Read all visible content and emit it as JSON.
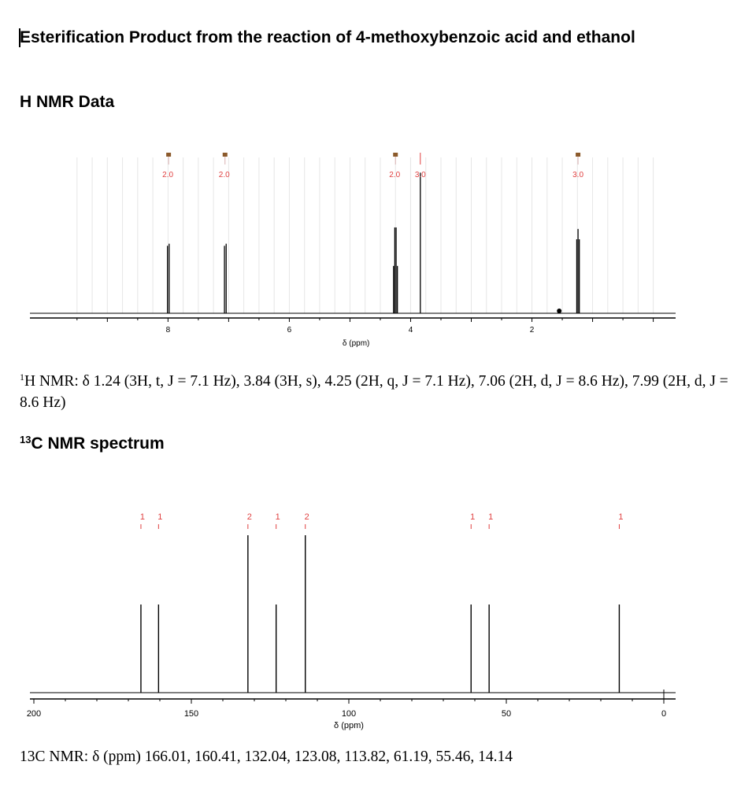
{
  "document": {
    "title": "Esterification Product from the reaction of 4-methoxybenzoic acid and ethanol",
    "h_heading": "H NMR Data",
    "h_caption_sup": "1",
    "h_caption": "H NMR: δ 1.24 (3H, t, J = 7.1 Hz), 3.84 (3H, s), 4.25 (2H, q, J = 7.1 Hz), 7.06 (2H, d, J = 8.6 Hz), 7.99 (2H, d, J = 8.6 Hz)",
    "c_heading_sup": "13",
    "c_heading": "C NMR spectrum",
    "c_caption": "13C NMR: δ (ppm) 166.01, 160.41, 132.04, 123.08, 113.82, 61.19, 55.46, 14.14"
  },
  "chart_data": [
    {
      "type": "line",
      "subtype": "nmr-stick-spectrum",
      "nucleus": "1H",
      "xlabel": "δ (ppm)",
      "x_range": [
        9.9,
        -0.2
      ],
      "x_ticks": [
        8,
        6,
        4,
        2
      ],
      "y_range": [
        0,
        1
      ],
      "peaks": [
        {
          "ppm": 7.99,
          "multiplicity": "d",
          "lines": [
            8.009,
            7.981
          ],
          "height": 0.47
        },
        {
          "ppm": 7.06,
          "multiplicity": "d",
          "lines": [
            7.069,
            7.041
          ],
          "height": 0.47
        },
        {
          "ppm": 4.25,
          "multiplicity": "q",
          "lines": [
            4.282,
            4.261,
            4.239,
            4.218
          ],
          "height": 0.5
        },
        {
          "ppm": 3.84,
          "multiplicity": "s",
          "lines": [
            3.84
          ],
          "height": 0.95
        },
        {
          "ppm": 1.24,
          "multiplicity": "t",
          "lines": [
            1.261,
            1.24,
            1.219
          ],
          "height": 0.5
        }
      ],
      "integrals": [
        {
          "ppm": 7.99,
          "label": "2.0"
        },
        {
          "ppm": 7.06,
          "label": "2.0"
        },
        {
          "ppm": 4.25,
          "label": "2.0"
        },
        {
          "ppm": 3.84,
          "label": "3.0"
        },
        {
          "ppm": 1.24,
          "label": "3.0"
        }
      ],
      "marker_dot_ppm": 1.55,
      "colors": {
        "integral_text": "#e04040",
        "integral_marker": "#8b5a2b",
        "peak": "#000000",
        "grid": "#e6e6e6"
      },
      "grid": true
    },
    {
      "type": "line",
      "subtype": "nmr-stick-spectrum",
      "nucleus": "13C",
      "xlabel": "δ (ppm)",
      "x_range": [
        200,
        0
      ],
      "x_ticks": [
        200,
        150,
        100,
        50,
        0
      ],
      "y_range": [
        0,
        1
      ],
      "peaks": [
        {
          "ppm": 166.01,
          "height": 0.56,
          "label": "1"
        },
        {
          "ppm": 160.41,
          "height": 0.56,
          "label": "1"
        },
        {
          "ppm": 132.04,
          "height": 1.0,
          "label": "2"
        },
        {
          "ppm": 123.08,
          "height": 0.56,
          "label": "1"
        },
        {
          "ppm": 113.82,
          "height": 1.0,
          "label": "2"
        },
        {
          "ppm": 61.19,
          "height": 0.56,
          "label": "1"
        },
        {
          "ppm": 55.46,
          "height": 0.56,
          "label": "1"
        },
        {
          "ppm": 14.14,
          "height": 0.56,
          "label": "1"
        }
      ],
      "colors": {
        "peak_label": "#e04040",
        "peak": "#000000"
      },
      "grid": false
    }
  ]
}
